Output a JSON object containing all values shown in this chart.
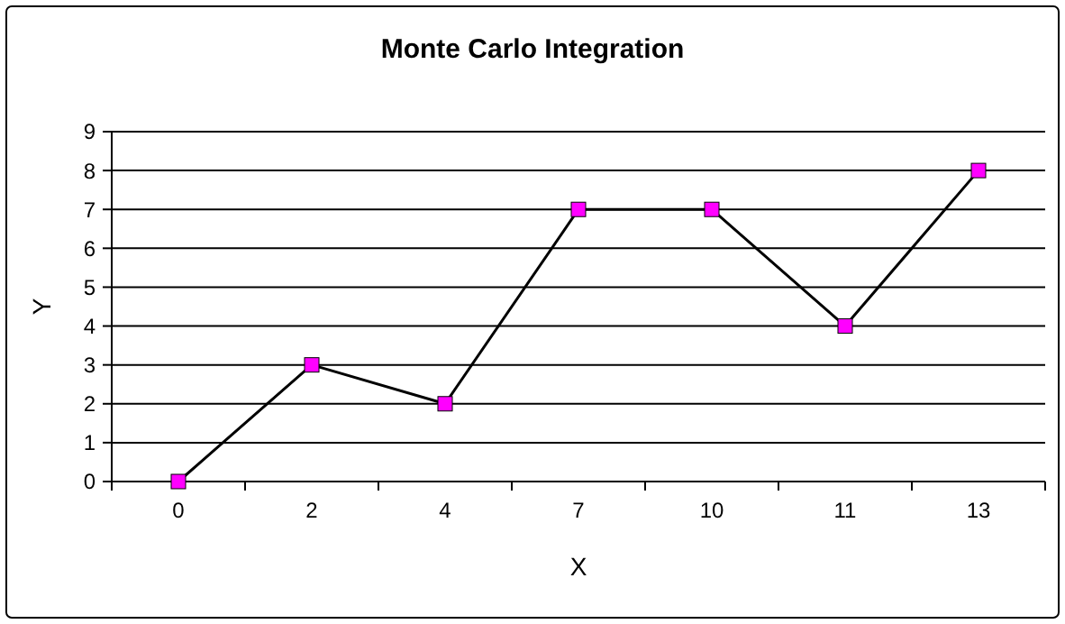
{
  "chart_data": {
    "type": "line",
    "title": "Monte Carlo Integration",
    "xlabel": "X",
    "ylabel": "Y",
    "categories": [
      "0",
      "2",
      "4",
      "7",
      "10",
      "11",
      "13"
    ],
    "series": [
      {
        "color": "#ff00ff",
        "values": [
          0,
          3,
          2,
          7,
          7,
          4,
          8
        ]
      }
    ],
    "ylim": [
      0,
      9
    ],
    "yticks": [
      0,
      1,
      2,
      3,
      4,
      5,
      6,
      7,
      8,
      9
    ],
    "grid": "y",
    "marker": "square",
    "line_style": "solid"
  }
}
